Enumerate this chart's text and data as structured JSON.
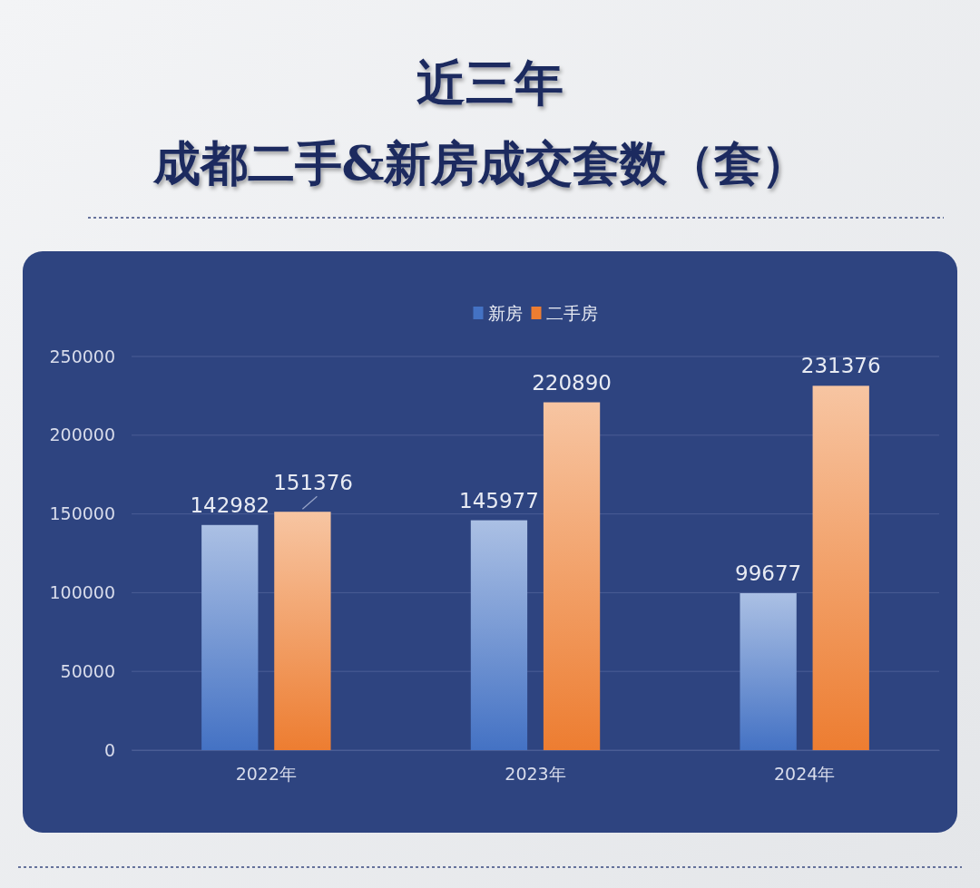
{
  "chart_data": {
    "type": "bar",
    "title": "近三年",
    "subtitle": "成都二手&新房成交套数（套）",
    "categories": [
      "2022年",
      "2023年",
      "2024年"
    ],
    "series": [
      {
        "name": "新房",
        "color": "#4472c4",
        "values": [
          142982,
          145977,
          99677
        ]
      },
      {
        "name": "二手房",
        "color": "#ed7d31",
        "values": [
          151376,
          220890,
          231376
        ]
      }
    ],
    "ylim": [
      0,
      250000
    ],
    "yticks": [
      0,
      50000,
      100000,
      150000,
      200000,
      250000
    ],
    "grid": "y",
    "legend": "top",
    "data_labels": true
  }
}
